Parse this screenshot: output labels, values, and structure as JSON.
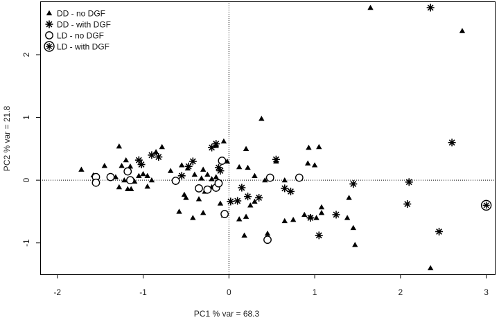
{
  "chart_data": {
    "type": "scatter",
    "title": "",
    "xlabel": "PC1 % var = 68.3",
    "ylabel": "PC2 % var = 21.8",
    "xlim": [
      -2.2,
      3.1
    ],
    "ylim": [
      -1.5,
      2.85
    ],
    "xticks": [
      -2,
      -1,
      0,
      1,
      2,
      3
    ],
    "yticks": [
      -1,
      0,
      1,
      2
    ],
    "ref_lines": {
      "x": 0,
      "y": 0,
      "style": "dotted"
    },
    "grid": false,
    "legend_position": "top-left",
    "series": [
      {
        "name": "DD - no DGF",
        "marker": "filled-triangle",
        "points": [
          [
            -1.72,
            0.17
          ],
          [
            -1.58,
            0.08
          ],
          [
            -1.45,
            0.23
          ],
          [
            -1.28,
            0.54
          ],
          [
            -1.25,
            0.23
          ],
          [
            -1.2,
            0.32
          ],
          [
            -1.15,
            0.22
          ],
          [
            -1.32,
            0.05
          ],
          [
            -1.28,
            -0.11
          ],
          [
            -1.22,
            0.0
          ],
          [
            -1.18,
            -0.14
          ],
          [
            -1.14,
            -0.14
          ],
          [
            -1.1,
            -0.02
          ],
          [
            -1.05,
            0.07
          ],
          [
            -1.0,
            0.1
          ],
          [
            -0.95,
            0.07
          ],
          [
            -0.9,
            0.0
          ],
          [
            -0.95,
            -0.1
          ],
          [
            -0.85,
            0.45
          ],
          [
            -0.78,
            0.53
          ],
          [
            -0.68,
            0.15
          ],
          [
            -0.55,
            0.24
          ],
          [
            -0.48,
            0.19
          ],
          [
            -0.4,
            0.09
          ],
          [
            -0.32,
            0.03
          ],
          [
            -0.3,
            0.17
          ],
          [
            -0.25,
            0.09
          ],
          [
            -0.2,
            0.02
          ],
          [
            -0.15,
            0.05
          ],
          [
            -0.52,
            -0.23
          ],
          [
            -0.58,
            -0.5
          ],
          [
            -0.5,
            -0.28
          ],
          [
            -0.35,
            -0.12
          ],
          [
            -0.28,
            -0.18
          ],
          [
            -0.2,
            -0.11
          ],
          [
            -0.42,
            -0.6
          ],
          [
            -0.35,
            -0.3
          ],
          [
            -0.3,
            -0.52
          ],
          [
            -0.1,
            -0.37
          ],
          [
            -0.06,
            -0.56
          ],
          [
            -0.02,
            0.3
          ],
          [
            -0.15,
            0.55
          ],
          [
            -0.06,
            0.62
          ],
          [
            0.2,
            0.5
          ],
          [
            0.38,
            0.98
          ],
          [
            0.12,
            0.21
          ],
          [
            0.22,
            0.2
          ],
          [
            0.3,
            0.07
          ],
          [
            0.42,
            0.0
          ],
          [
            0.55,
            0.3
          ],
          [
            0.65,
            0.0
          ],
          [
            0.25,
            -0.4
          ],
          [
            0.12,
            -0.62
          ],
          [
            0.2,
            -0.58
          ],
          [
            0.3,
            -0.34
          ],
          [
            0.18,
            -0.88
          ],
          [
            0.45,
            -0.85
          ],
          [
            0.65,
            -0.65
          ],
          [
            0.75,
            -0.63
          ],
          [
            0.88,
            -0.55
          ],
          [
            0.95,
            -0.58
          ],
          [
            0.92,
            0.27
          ],
          [
            1.0,
            0.24
          ],
          [
            0.93,
            0.52
          ],
          [
            1.05,
            0.53
          ],
          [
            1.02,
            -0.6
          ],
          [
            1.08,
            -0.43
          ],
          [
            1.08,
            -0.52
          ],
          [
            1.4,
            -0.28
          ],
          [
            1.38,
            -0.6
          ],
          [
            1.45,
            -0.76
          ],
          [
            1.47,
            -1.03
          ],
          [
            1.65,
            2.75
          ],
          [
            2.35,
            -1.4
          ],
          [
            2.72,
            2.38
          ]
        ]
      },
      {
        "name": "DD - with DGF",
        "marker": "asterisk",
        "points": [
          [
            -1.05,
            0.32
          ],
          [
            -1.02,
            0.25
          ],
          [
            -0.9,
            0.4
          ],
          [
            -0.82,
            0.37
          ],
          [
            -0.55,
            0.07
          ],
          [
            -0.47,
            0.22
          ],
          [
            -0.42,
            0.3
          ],
          [
            -0.2,
            0.52
          ],
          [
            -0.15,
            0.58
          ],
          [
            -0.1,
            0.15
          ],
          [
            -0.12,
            0.2
          ],
          [
            0.02,
            -0.34
          ],
          [
            0.1,
            -0.33
          ],
          [
            0.15,
            -0.12
          ],
          [
            0.22,
            -0.26
          ],
          [
            0.35,
            -0.28
          ],
          [
            0.55,
            0.33
          ],
          [
            0.65,
            -0.13
          ],
          [
            0.72,
            -0.18
          ],
          [
            0.95,
            -0.6
          ],
          [
            1.05,
            -0.88
          ],
          [
            1.25,
            -0.55
          ],
          [
            1.45,
            -0.06
          ],
          [
            2.08,
            -0.38
          ],
          [
            2.1,
            -0.03
          ],
          [
            2.35,
            2.75
          ],
          [
            2.45,
            -0.82
          ],
          [
            2.6,
            0.6
          ]
        ]
      },
      {
        "name": "LD - no DGF",
        "marker": "open-circle",
        "points": [
          [
            -1.55,
            0.05
          ],
          [
            -1.55,
            -0.04
          ],
          [
            -1.38,
            0.05
          ],
          [
            -1.18,
            0.14
          ],
          [
            -1.15,
            0.0
          ],
          [
            -0.62,
            -0.01
          ],
          [
            -0.35,
            -0.13
          ],
          [
            -0.25,
            -0.15
          ],
          [
            -0.15,
            -0.12
          ],
          [
            -0.12,
            -0.05
          ],
          [
            -0.08,
            0.31
          ],
          [
            -0.05,
            -0.54
          ],
          [
            0.45,
            -0.95
          ],
          [
            0.48,
            0.04
          ],
          [
            0.82,
            0.04
          ]
        ]
      },
      {
        "name": "LD - with DGF",
        "marker": "circled-asterisk",
        "points": [
          [
            3.0,
            -0.4
          ]
        ]
      }
    ]
  }
}
